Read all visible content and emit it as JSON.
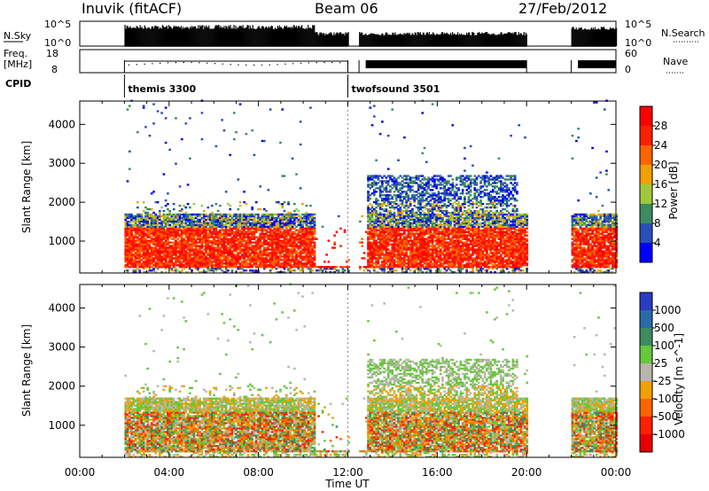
{
  "header": {
    "station": "Inuvik (fitACF)",
    "beam": "Beam 06",
    "date": "27/Feb/2012"
  },
  "strip_labels": {
    "nsky": "N.Sky",
    "nsky_ticks": [
      "10^5",
      "10^0"
    ],
    "nsearch": "N.Search",
    "nsearch_ticks": [
      "10^5",
      "10^0"
    ],
    "freq": "Freq.",
    "freq_unit": "[MHz]",
    "freq_ticks": [
      "18",
      "8"
    ],
    "nave": "Nave",
    "nave_ticks": [
      "60",
      "0"
    ],
    "cpid": "CPID"
  },
  "cpid_markers": [
    {
      "hour": 2.0,
      "label": "themis 3300"
    },
    {
      "hour": 12.0,
      "label": "twofsound 3501"
    }
  ],
  "chart_data": [
    {
      "type": "heatmap",
      "title": "",
      "xlabel": "Time UT",
      "ylabel": "Slant Range [km]",
      "x_ticks": [
        "00:00",
        "04:00",
        "08:00",
        "12:00",
        "16:00",
        "20:00",
        "00:00"
      ],
      "xlim_hours": [
        0,
        24
      ],
      "ylim": [
        180,
        4600
      ],
      "y_ticks": [
        1000,
        2000,
        3000,
        4000
      ],
      "colorbar": {
        "label": "Power [dB]",
        "ticks": [
          4,
          8,
          12,
          16,
          20,
          24,
          28
        ],
        "colors": [
          "#0000ff",
          "#2a50b8",
          "#3c8c60",
          "#a0c83c",
          "#f0a000",
          "#ff6400",
          "#ff2000",
          "#ff0000"
        ]
      },
      "data_segments_hours": [
        [
          2.0,
          12.0
        ],
        [
          12.5,
          20.0
        ],
        [
          22.0,
          24.0
        ]
      ],
      "echo_bands_km": [
        {
          "x": [
            2.0,
            10.4
          ],
          "y": [
            500,
            1600
          ],
          "level": "high"
        },
        {
          "x": [
            12.8,
            19.8
          ],
          "y": [
            600,
            1800
          ],
          "level": "high"
        },
        {
          "x": [
            22.0,
            24.0
          ],
          "y": [
            600,
            1300
          ],
          "level": "high"
        }
      ]
    },
    {
      "type": "heatmap",
      "title": "",
      "xlabel": "Time UT",
      "ylabel": "Slant Range [km]",
      "x_ticks": [
        "00:00",
        "04:00",
        "08:00",
        "12:00",
        "16:00",
        "20:00",
        "00:00"
      ],
      "xlim_hours": [
        0,
        24
      ],
      "ylim": [
        180,
        4600
      ],
      "y_ticks": [
        1000,
        2000,
        3000,
        4000
      ],
      "colorbar": {
        "label": "Velocity [m s^-1]",
        "ticks": [
          1000,
          500,
          100,
          25,
          -25,
          -100,
          -500,
          -1000
        ],
        "colors": [
          "#2a3cc0",
          "#2a6aa8",
          "#3c8c60",
          "#66c83c",
          "#b8b8a8",
          "#f0a000",
          "#ff6400",
          "#ff2000",
          "#e80000"
        ]
      },
      "data_segments_hours": [
        [
          2.0,
          12.0
        ],
        [
          12.5,
          20.0
        ],
        [
          22.0,
          24.0
        ]
      ]
    }
  ]
}
